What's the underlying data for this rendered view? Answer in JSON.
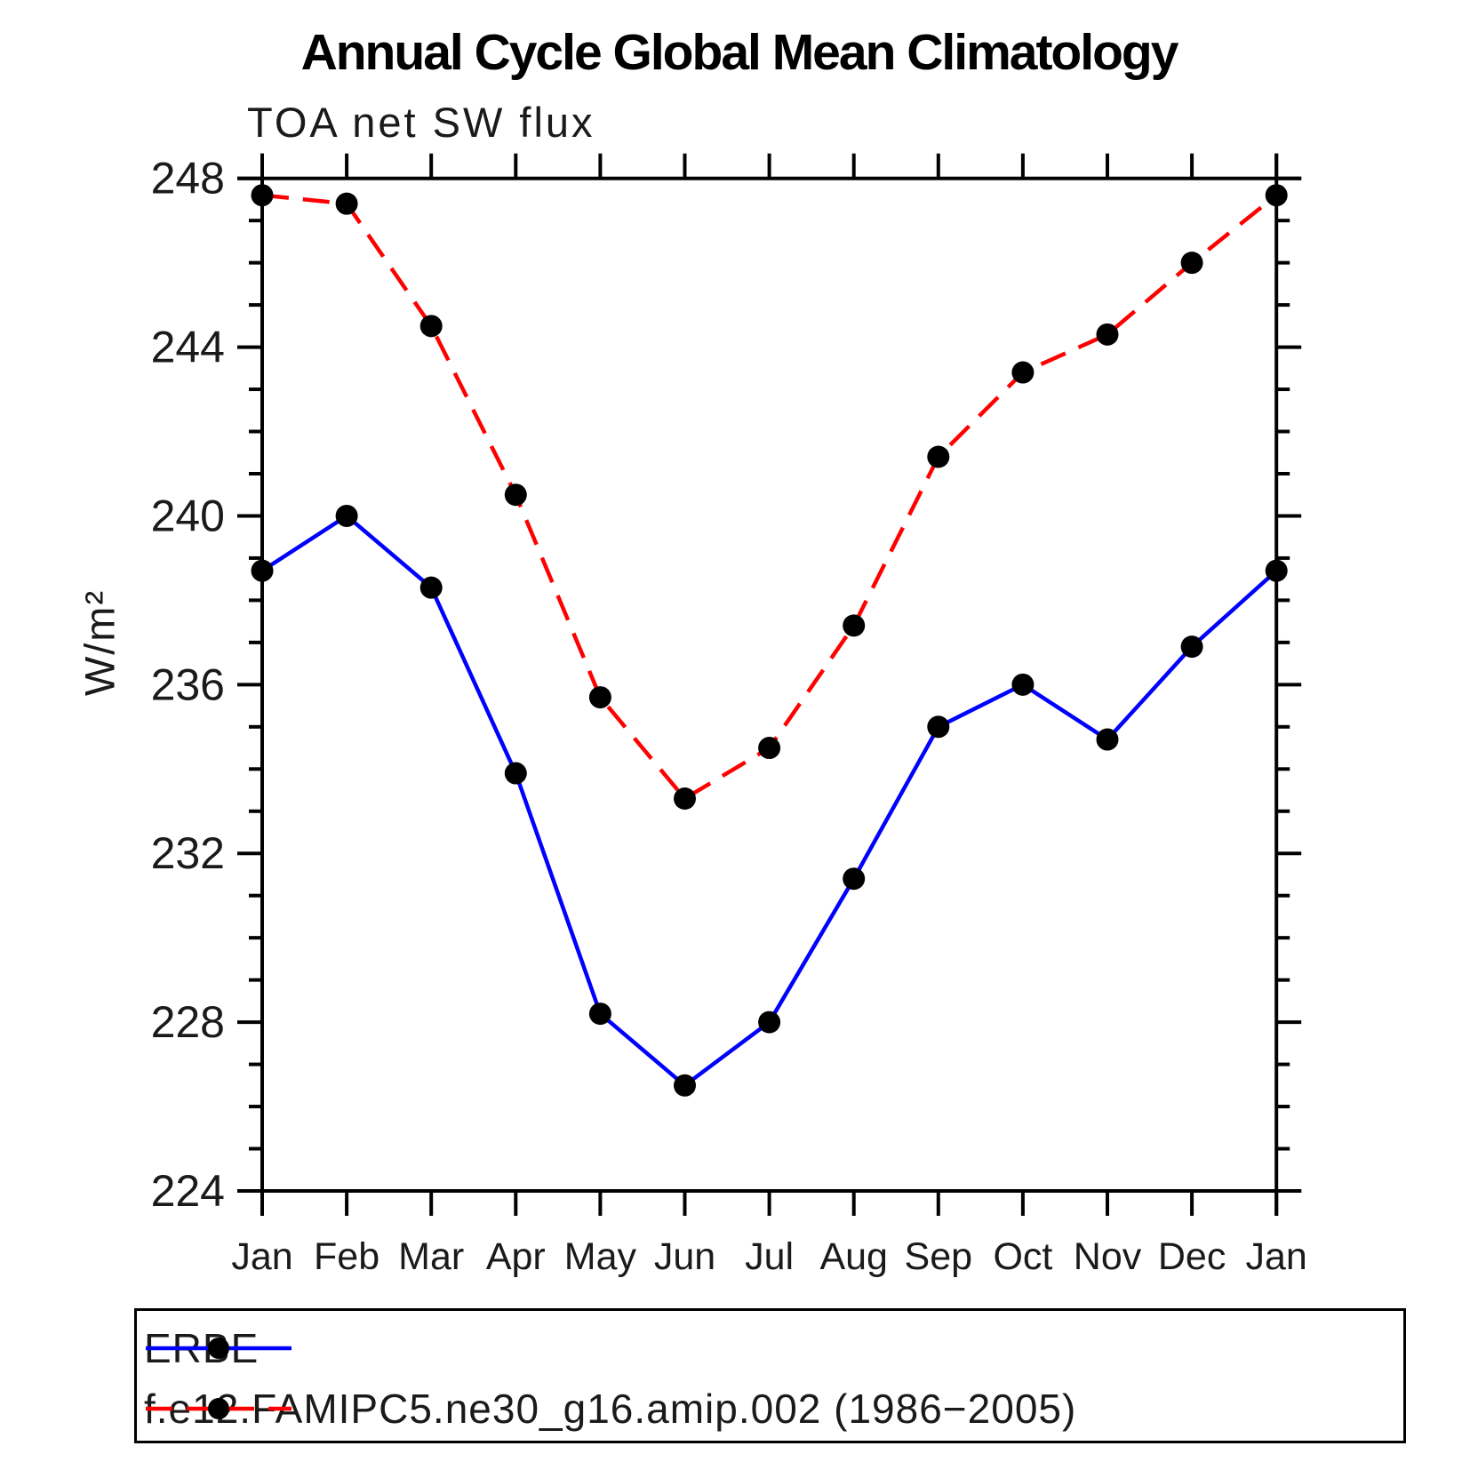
{
  "page": {
    "background": "#ffffff"
  },
  "chart": {
    "title": "Annual Cycle Global Mean Climatology",
    "subtitle": "TOA net SW flux",
    "y_axis_label": "W/m²"
  },
  "chart_data": {
    "type": "line",
    "title": "Annual Cycle Global Mean Climatology",
    "subtitle": "TOA net SW flux",
    "xlabel": "",
    "ylabel": "W/m²",
    "categories": [
      "Jan",
      "Feb",
      "Mar",
      "Apr",
      "May",
      "Jun",
      "Jul",
      "Aug",
      "Sep",
      "Oct",
      "Nov",
      "Dec",
      "Jan"
    ],
    "series": [
      {
        "name": "ERBE",
        "color": "#0000ff",
        "line_style": "solid",
        "marker": "filled-circle",
        "marker_color": "#000000",
        "values": [
          238.7,
          240.0,
          238.3,
          233.9,
          228.2,
          226.5,
          228.0,
          231.4,
          235.0,
          236.0,
          234.7,
          236.9,
          238.7
        ]
      },
      {
        "name": "f.e12.FAMIPC5.ne30_g16.amip.002 (1986−2005)",
        "color": "#ff0000",
        "line_style": "dashed",
        "marker": "filled-circle",
        "marker_color": "#000000",
        "values": [
          247.6,
          247.4,
          244.5,
          240.5,
          235.7,
          233.3,
          234.5,
          237.4,
          241.4,
          243.4,
          244.3,
          246.0,
          247.6
        ]
      }
    ],
    "ylim": [
      224,
      248
    ],
    "ytick_major_step": 4,
    "ytick_minor_step": 1,
    "yticks_major": [
      224,
      228,
      232,
      236,
      240,
      244,
      248
    ],
    "grid": false,
    "tick_style": "outward-all-four-sides",
    "legend_position": "below-plot-boxed"
  },
  "legend": {
    "items": [
      {
        "label": "ERBE"
      },
      {
        "label": "f.e12.FAMIPC5.ne30_g16.amip.002 (1986−2005)"
      }
    ]
  }
}
